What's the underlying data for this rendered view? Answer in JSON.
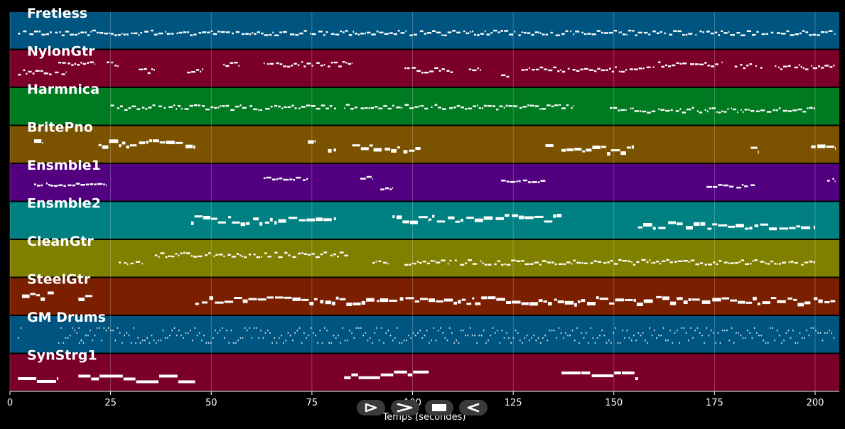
{
  "chart_data": {
    "type": "piano-roll",
    "xlabel": "Temps (secondes)",
    "xlim": [
      0,
      206
    ],
    "xticks": [
      0,
      25,
      50,
      75,
      100,
      125,
      150,
      175,
      200
    ],
    "grid": true,
    "tracks": [
      {
        "name": "Fretless",
        "color": "#005580",
        "segments": [
          [
            2,
            205
          ]
        ],
        "density": "dense"
      },
      {
        "name": "NylonGtr",
        "color": "#7a002a",
        "segments": [
          [
            2,
            14
          ],
          [
            12,
            21
          ],
          [
            24,
            27
          ],
          [
            32,
            36
          ],
          [
            44,
            48
          ],
          [
            53,
            57
          ],
          [
            63,
            85
          ],
          [
            98,
            110
          ],
          [
            114,
            117
          ],
          [
            122,
            124
          ],
          [
            127,
            160
          ],
          [
            161,
            177
          ],
          [
            180,
            187
          ],
          [
            190,
            205
          ]
        ],
        "density": "medium"
      },
      {
        "name": "Harmnica",
        "color": "#007a20",
        "segments": [
          [
            25,
            81
          ],
          [
            83,
            140
          ],
          [
            149,
            200
          ]
        ],
        "density": "medium"
      },
      {
        "name": "BritePno",
        "color": "#7a5200",
        "segments": [
          [
            6,
            8
          ],
          [
            22,
            46
          ],
          [
            74,
            76
          ],
          [
            79,
            81
          ],
          [
            85,
            102
          ],
          [
            133,
            135
          ],
          [
            137,
            155
          ],
          [
            184,
            186
          ],
          [
            199,
            205
          ]
        ],
        "density": "blocks"
      },
      {
        "name": "Ensmble1",
        "color": "#520080",
        "segments": [
          [
            6,
            10
          ],
          [
            10,
            24
          ],
          [
            63,
            74
          ],
          [
            87,
            90
          ],
          [
            92,
            95
          ],
          [
            122,
            133
          ],
          [
            173,
            185
          ],
          [
            203,
            205
          ]
        ],
        "density": "sparse"
      },
      {
        "name": "Ensmble2",
        "color": "#008080",
        "segments": [
          [
            45,
            81
          ],
          [
            95,
            104
          ],
          [
            104,
            137
          ],
          [
            156,
            200
          ]
        ],
        "density": "blocks"
      },
      {
        "name": "CleanGtr",
        "color": "#808000",
        "segments": [
          [
            27,
            33
          ],
          [
            36,
            84
          ],
          [
            90,
            94
          ],
          [
            98,
            200
          ]
        ],
        "density": "medium"
      },
      {
        "name": "SteelGtr",
        "color": "#7a2000",
        "segments": [
          [
            3,
            11
          ],
          [
            17,
            21
          ],
          [
            46,
            205
          ]
        ],
        "density": "blocks"
      },
      {
        "name": "GM Drums",
        "color": "#005580",
        "segments": [
          [
            2,
            3
          ],
          [
            12,
            18
          ],
          [
            17,
            205
          ]
        ],
        "density": "drums"
      },
      {
        "name": "SynStrg1",
        "color": "#7a002a",
        "segments": [
          [
            2,
            12
          ],
          [
            17,
            46
          ],
          [
            83,
            104
          ],
          [
            137,
            156
          ]
        ],
        "density": "long"
      }
    ]
  },
  "controls": {
    "play_icon": "play-outline-icon",
    "forward_icon": "forward-icon",
    "stop_icon": "stop-icon",
    "back_icon": "back-icon"
  }
}
